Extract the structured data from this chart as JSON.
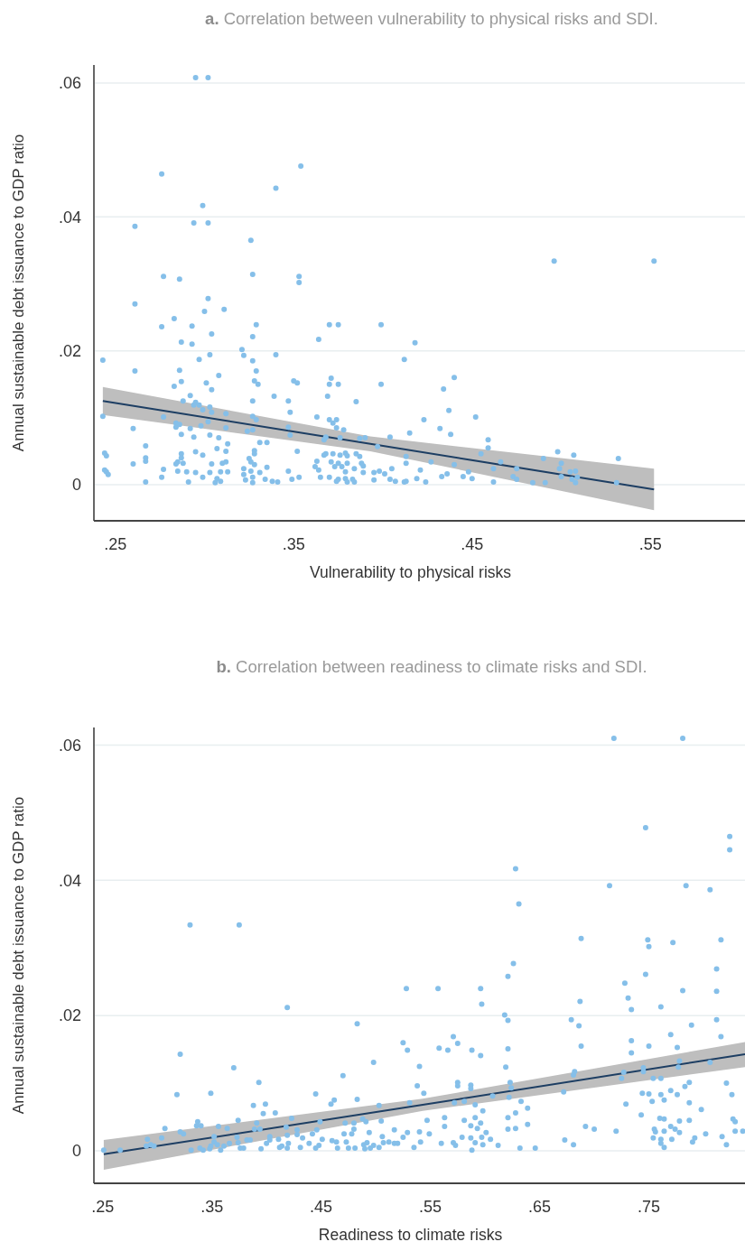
{
  "chart_data": [
    {
      "type": "scatter",
      "title": "a. Correlation between vulnerability to physical risks and SDI.",
      "xlabel": "Vulnerability to physical risks",
      "ylabel": "Annual sustainable debt issuance to GDP ratio",
      "xlim": [
        0.238,
        0.603
      ],
      "ylim": [
        -0.0054,
        0.0627
      ],
      "xticks": [
        {
          "value": 0.25,
          "label": ".25"
        },
        {
          "value": 0.35,
          "label": ".35"
        },
        {
          "value": 0.45,
          "label": ".45"
        },
        {
          "value": 0.55,
          "label": ".55"
        }
      ],
      "yticks": [
        {
          "value": 0,
          "label": "0"
        },
        {
          "value": 0.02,
          "label": ".02"
        },
        {
          "value": 0.04,
          "label": ".04"
        },
        {
          "value": 0.06,
          "label": ".06"
        }
      ],
      "grid": "y",
      "series": [
        {
          "type": "line",
          "color": "#1d3e63",
          "x": [
            0.243,
            0.393,
            0.552
          ],
          "values": [
            0.0125,
            0.0061,
            -0.0007
          ],
          "lower": [
            0.0104,
            0.005,
            -0.0038
          ],
          "upper": [
            0.0146,
            0.0072,
            0.0024
          ]
        },
        {
          "marker": "circle",
          "color": "#85bfe9",
          "x": [
            0.295,
            0.302,
            0.276,
            0.354,
            0.34,
            0.299,
            0.261,
            0.294,
            0.302,
            0.326,
            0.277,
            0.286,
            0.327,
            0.353,
            0.353,
            0.418,
            0.412,
            0.44,
            0.434,
            0.437,
            0.423,
            0.452,
            0.415,
            0.432,
            0.438,
            0.459,
            0.459,
            0.455,
            0.49,
            0.498,
            0.507,
            0.532,
            0.466,
            0.5,
            0.413,
            0.427,
            0.44,
            0.462,
            0.475,
            0.499,
            0.505,
            0.508,
            0.448,
            0.421,
            0.445,
            0.433,
            0.436,
            0.45,
            0.473,
            0.475,
            0.5,
            0.506,
            0.509,
            0.419,
            0.424,
            0.412,
            0.462,
            0.484,
            0.491,
            0.508,
            0.531,
            0.496,
            0.552,
            0.261,
            0.302,
            0.3,
            0.311,
            0.283,
            0.276,
            0.293,
            0.329,
            0.37,
            0.375,
            0.399,
            0.304,
            0.287,
            0.293,
            0.327,
            0.364,
            0.321,
            0.243,
            0.261,
            0.297,
            0.303,
            0.322,
            0.34,
            0.327,
            0.329,
            0.286,
            0.308,
            0.283,
            0.287,
            0.301,
            0.304,
            0.328,
            0.33,
            0.35,
            0.352,
            0.371,
            0.37,
            0.375,
            0.399,
            0.292,
            0.288,
            0.295,
            0.294,
            0.297,
            0.299,
            0.303,
            0.304,
            0.339,
            0.347,
            0.327,
            0.369,
            0.385,
            0.243,
            0.277,
            0.312,
            0.327,
            0.329,
            0.348,
            0.363,
            0.37,
            0.374,
            0.372,
            0.374,
            0.378,
            0.26,
            0.284,
            0.284,
            0.286,
            0.292,
            0.298,
            0.302,
            0.312,
            0.327,
            0.324,
            0.347,
            0.348,
            0.287,
            0.294,
            0.303,
            0.308,
            0.368,
            0.367,
            0.376,
            0.387,
            0.39,
            0.404,
            0.397,
            0.331,
            0.335,
            0.313,
            0.267,
            0.244,
            0.245,
            0.295,
            0.299,
            0.307,
            0.312,
            0.328,
            0.328,
            0.352,
            0.287,
            0.287,
            0.267,
            0.267,
            0.26,
            0.284,
            0.285,
            0.288,
            0.304,
            0.31,
            0.312,
            0.325,
            0.326,
            0.328,
            0.335,
            0.367,
            0.368,
            0.372,
            0.376,
            0.379,
            0.38,
            0.385,
            0.387,
            0.363,
            0.371,
            0.375,
            0.38,
            0.388,
            0.389,
            0.244,
            0.245,
            0.246,
            0.277,
            0.285,
            0.29,
            0.295,
            0.303,
            0.309,
            0.313,
            0.322,
            0.326,
            0.331,
            0.347,
            0.362,
            0.364,
            0.373,
            0.377,
            0.379,
            0.384,
            0.389,
            0.395,
            0.398,
            0.401,
            0.405,
            0.413,
            0.276,
            0.299,
            0.307,
            0.322,
            0.327,
            0.334,
            0.349,
            0.353,
            0.365,
            0.37,
            0.375,
            0.379,
            0.383,
            0.404,
            0.267,
            0.291,
            0.306,
            0.309,
            0.323,
            0.327,
            0.338,
            0.341,
            0.374,
            0.38,
            0.384,
            0.395,
            0.407,
            0.413
          ],
          "values": [
            0.0608,
            0.0608,
            0.0464,
            0.0476,
            0.0443,
            0.0417,
            0.0386,
            0.0391,
            0.0391,
            0.0365,
            0.0311,
            0.0307,
            0.0314,
            0.0311,
            0.0302,
            0.0212,
            0.0187,
            0.016,
            0.0143,
            0.0111,
            0.0097,
            0.0101,
            0.0077,
            0.0084,
            0.0075,
            0.0067,
            0.0055,
            0.0046,
            0.0039,
            0.0049,
            0.0044,
            0.0039,
            0.0034,
            0.0032,
            0.0042,
            0.0034,
            0.003,
            0.0024,
            0.0024,
            0.0024,
            0.0019,
            0.002,
            0.0019,
            0.0022,
            0.0012,
            0.0012,
            0.0016,
            0.0009,
            0.0012,
            0.0008,
            0.0012,
            0.0008,
            0.0011,
            0.0009,
            0.0004,
            0.0004,
            0.0004,
            0.0003,
            0.0003,
            0.0003,
            0.0003,
            0.0334,
            0.0334,
            0.027,
            0.0278,
            0.0259,
            0.0262,
            0.0248,
            0.0236,
            0.0237,
            0.0239,
            0.0239,
            0.0239,
            0.0239,
            0.0225,
            0.0213,
            0.021,
            0.0221,
            0.0217,
            0.0202,
            0.0186,
            0.017,
            0.0187,
            0.0194,
            0.0193,
            0.0194,
            0.0185,
            0.017,
            0.0171,
            0.0163,
            0.0147,
            0.0154,
            0.0152,
            0.0142,
            0.0155,
            0.015,
            0.0155,
            0.0152,
            0.0159,
            0.015,
            0.015,
            0.015,
            0.0133,
            0.0125,
            0.0123,
            0.0119,
            0.0119,
            0.0112,
            0.0116,
            0.0108,
            0.0132,
            0.0125,
            0.0125,
            0.0132,
            0.0124,
            0.0102,
            0.0101,
            0.0106,
            0.0102,
            0.0097,
            0.0108,
            0.0101,
            0.0097,
            0.0097,
            0.0092,
            0.0085,
            0.0082,
            0.0084,
            0.0092,
            0.0086,
            0.009,
            0.0084,
            0.0088,
            0.0094,
            0.0085,
            0.0082,
            0.008,
            0.0086,
            0.0074,
            0.0075,
            0.0071,
            0.0074,
            0.007,
            0.0071,
            0.0067,
            0.007,
            0.0069,
            0.007,
            0.0071,
            0.0057,
            0.0063,
            0.0063,
            0.0061,
            0.0058,
            0.0047,
            0.0043,
            0.0049,
            0.0044,
            0.0054,
            0.005,
            0.0051,
            0.0046,
            0.005,
            0.0046,
            0.004,
            0.004,
            0.0035,
            0.0031,
            0.0031,
            0.0034,
            0.0032,
            0.0031,
            0.0032,
            0.0034,
            0.0039,
            0.0034,
            0.003,
            0.0026,
            0.0044,
            0.0046,
            0.0046,
            0.0044,
            0.0047,
            0.0043,
            0.0046,
            0.0042,
            0.0035,
            0.0034,
            0.0032,
            0.0032,
            0.0032,
            0.0028,
            0.0022,
            0.0019,
            0.0015,
            0.0023,
            0.002,
            0.0019,
            0.0018,
            0.0018,
            0.0019,
            0.0019,
            0.0024,
            0.002,
            0.0018,
            0.002,
            0.0027,
            0.0022,
            0.0027,
            0.0027,
            0.0019,
            0.0024,
            0.0018,
            0.0018,
            0.002,
            0.0016,
            0.0024,
            0.0032,
            0.0011,
            0.0011,
            0.0009,
            0.0015,
            0.0011,
            0.0008,
            0.0008,
            0.0011,
            0.0011,
            0.0011,
            0.0008,
            0.0009,
            0.0008,
            0.0008,
            0.0004,
            0.0004,
            0.0003,
            0.0005,
            0.0007,
            0.0003,
            0.0005,
            0.0004,
            0.0005,
            0.0004,
            0.0004,
            0.0007,
            0.0005,
            0.0005
          ]
        }
      ]
    },
    {
      "type": "scatter",
      "title": "b. Correlation between readiness to climate risks and SDI.",
      "xlabel": "Readiness to climate risks",
      "ylabel": "Annual sustainable debt issuance to GDP ratio",
      "xlim": [
        0.242,
        0.838
      ],
      "ylim": [
        -0.0048,
        0.0626
      ],
      "xticks": [
        {
          "value": 0.25,
          "label": ".25"
        },
        {
          "value": 0.35,
          "label": ".35"
        },
        {
          "value": 0.45,
          "label": ".45"
        },
        {
          "value": 0.55,
          "label": ".55"
        },
        {
          "value": 0.65,
          "label": ".65"
        },
        {
          "value": 0.75,
          "label": ".75"
        }
      ],
      "yticks": [
        {
          "value": 0,
          "label": "0"
        },
        {
          "value": 0.02,
          "label": ".02"
        },
        {
          "value": 0.04,
          "label": ".04"
        },
        {
          "value": 0.06,
          "label": ".06"
        }
      ],
      "grid": "y",
      "series": [
        {
          "type": "line",
          "color": "#1d3e63",
          "x": [
            0.251,
            0.543,
            0.838
          ],
          "values": [
            -0.0005,
            0.0068,
            0.0143
          ],
          "lower": [
            -0.0028,
            0.0059,
            0.0124
          ],
          "upper": [
            0.0016,
            0.0077,
            0.0161
          ]
        },
        {
          "marker": "circle",
          "color": "#85bfe9",
          "x": [
            0.33,
            0.375,
            0.528,
            0.419,
            0.483,
            0.525,
            0.529,
            0.321,
            0.37,
            0.54,
            0.498,
            0.393,
            0.47,
            0.538,
            0.318,
            0.349,
            0.445,
            0.459,
            0.462,
            0.483,
            0.388,
            0.399,
            0.397,
            0.408,
            0.503,
            0.531,
            0.307,
            0.321,
            0.324,
            0.337,
            0.336,
            0.34,
            0.356,
            0.364,
            0.374,
            0.389,
            0.394,
            0.391,
            0.423,
            0.418,
            0.428,
            0.449,
            0.472,
            0.48,
            0.488,
            0.491,
            0.505,
            0.291,
            0.304,
            0.294,
            0.29,
            0.297,
            0.251,
            0.266,
            0.331,
            0.339,
            0.342,
            0.348,
            0.349,
            0.352,
            0.352,
            0.355,
            0.358,
            0.361,
            0.366,
            0.373,
            0.374,
            0.376,
            0.379,
            0.382,
            0.385,
            0.395,
            0.4,
            0.403,
            0.403,
            0.411,
            0.412,
            0.414,
            0.419,
            0.419,
            0.42,
            0.428,
            0.431,
            0.433,
            0.439,
            0.442,
            0.445,
            0.446,
            0.448,
            0.451,
            0.46,
            0.464,
            0.465,
            0.471,
            0.473,
            0.475,
            0.478,
            0.48,
            0.481,
            0.489,
            0.49,
            0.492,
            0.494,
            0.495,
            0.498,
            0.503,
            0.506,
            0.507,
            0.512,
            0.517,
            0.517,
            0.52,
            0.525,
            0.529,
            0.535,
            0.54,
            0.541,
            0.718,
            0.781,
            0.747,
            0.824,
            0.824,
            0.628,
            0.714,
            0.784,
            0.806,
            0.631,
            0.688,
            0.749,
            0.75,
            0.772,
            0.816,
            0.812,
            0.812,
            0.812,
            0.816,
            0.557,
            0.596,
            0.597,
            0.621,
            0.626,
            0.618,
            0.621,
            0.621,
            0.619,
            0.728,
            0.731,
            0.734,
            0.747,
            0.761,
            0.687,
            0.679,
            0.686,
            0.688,
            0.734,
            0.734,
            0.75,
            0.77,
            0.776,
            0.781,
            0.789,
            0.571,
            0.575,
            0.558,
            0.566,
            0.588,
            0.596,
            0.682,
            0.681,
            0.727,
            0.725,
            0.745,
            0.745,
            0.778,
            0.777,
            0.806,
            0.754,
            0.761,
            0.787,
            0.821,
            0.544,
            0.575,
            0.575,
            0.587,
            0.587,
            0.623,
            0.624,
            0.607,
            0.622,
            0.572,
            0.581,
            0.591,
            0.633,
            0.672,
            0.729,
            0.744,
            0.75,
            0.753,
            0.77,
            0.776,
            0.783,
            0.761,
            0.764,
            0.787,
            0.798,
            0.826,
            0.598,
            0.628,
            0.639,
            0.547,
            0.563,
            0.563,
            0.581,
            0.591,
            0.587,
            0.593,
            0.596,
            0.621,
            0.621,
            0.628,
            0.639,
            0.743,
            0.76,
            0.764,
            0.77,
            0.778,
            0.787,
            0.827,
            0.829,
            0.692,
            0.7,
            0.72,
            0.755,
            0.756,
            0.764,
            0.774,
            0.778,
            0.802,
            0.829,
            0.549,
            0.56,
            0.571,
            0.573,
            0.579,
            0.587,
            0.591,
            0.588,
            0.597,
            0.601,
            0.598,
            0.605,
            0.612,
            0.632,
            0.646,
            0.673,
            0.681,
            0.754,
            0.761,
            0.761,
            0.764,
            0.771,
            0.792,
            0.79,
            0.817,
            0.821,
            0.836
          ],
          "values": [
            0.0334,
            0.0334,
            0.024,
            0.0212,
            0.0188,
            0.016,
            0.0149,
            0.0143,
            0.0123,
            0.0125,
            0.0131,
            0.0101,
            0.0111,
            0.0096,
            0.0083,
            0.0085,
            0.0084,
            0.0069,
            0.0075,
            0.0076,
            0.0067,
            0.0069,
            0.0055,
            0.0056,
            0.0067,
            0.0071,
            0.0033,
            0.0028,
            0.0025,
            0.0043,
            0.0037,
            0.0037,
            0.0036,
            0.0033,
            0.0045,
            0.0032,
            0.0032,
            0.0041,
            0.0048,
            0.0035,
            0.0031,
            0.0043,
            0.0041,
            0.0041,
            0.0047,
            0.0043,
            0.0044,
            0.0017,
            0.0019,
            0.0009,
            0.0007,
            0.0007,
            0.0001,
            0.0001,
            0.0001,
            0.0004,
            0.0001,
            0.0003,
            0.0007,
            0.0021,
            0.0013,
            0.0009,
            0.0001,
            0.0007,
            0.0011,
            0.002,
            0.0012,
            0.0004,
            0.0004,
            0.0016,
            0.0016,
            0.0003,
            0.0011,
            0.0021,
            0.0016,
            0.0017,
            0.0005,
            0.0007,
            0.0004,
            0.0023,
            0.0011,
            0.0024,
            0.0005,
            0.0019,
            0.0011,
            0.0025,
            0.0004,
            0.0031,
            0.0008,
            0.0017,
            0.0015,
            0.0013,
            0.0004,
            0.0025,
            0.0013,
            0.0004,
            0.0025,
            0.0032,
            0.0004,
            0.0009,
            0.0003,
            0.0012,
            0.0027,
            0.0004,
            0.0008,
            0.0005,
            0.0021,
            0.0012,
            0.0013,
            0.0031,
            0.0011,
            0.0011,
            0.002,
            0.0027,
            0.0005,
            0.0028,
            0.0013,
            0.061,
            0.061,
            0.0478,
            0.0465,
            0.0445,
            0.0417,
            0.0392,
            0.0392,
            0.0386,
            0.0365,
            0.0314,
            0.0312,
            0.0302,
            0.0308,
            0.0312,
            0.0269,
            0.0236,
            0.0194,
            0.0169,
            0.024,
            0.024,
            0.0217,
            0.0258,
            0.0277,
            0.0201,
            0.0193,
            0.0151,
            0.0124,
            0.0248,
            0.0226,
            0.0209,
            0.0261,
            0.0213,
            0.0221,
            0.0194,
            0.0185,
            0.0155,
            0.0163,
            0.0145,
            0.0155,
            0.0172,
            0.0153,
            0.0237,
            0.0186,
            0.0169,
            0.0159,
            0.0152,
            0.0149,
            0.0149,
            0.0141,
            0.0117,
            0.0112,
            0.0116,
            0.0107,
            0.0123,
            0.0117,
            0.0133,
            0.0124,
            0.0131,
            0.0107,
            0.0107,
            0.0101,
            0.01,
            0.0085,
            0.0101,
            0.0096,
            0.0097,
            0.0092,
            0.0101,
            0.0093,
            0.0081,
            0.0079,
            0.0071,
            0.0073,
            0.0068,
            0.0073,
            0.0087,
            0.0069,
            0.0085,
            0.0084,
            0.0073,
            0.0089,
            0.0083,
            0.0095,
            0.0083,
            0.0075,
            0.0071,
            0.0061,
            0.0083,
            0.0059,
            0.0056,
            0.0063,
            0.0045,
            0.0049,
            0.0036,
            0.0045,
            0.0049,
            0.0037,
            0.0033,
            0.0041,
            0.0049,
            0.0032,
            0.0033,
            0.0039,
            0.0053,
            0.0048,
            0.0047,
            0.0036,
            0.0044,
            0.0045,
            0.0047,
            0.0043,
            0.0036,
            0.0032,
            0.0029,
            0.0032,
            0.0028,
            0.0029,
            0.0032,
            0.0027,
            0.0025,
            0.0029,
            0.0025,
            0.0011,
            0.0012,
            0.0008,
            0.002,
            0.0019,
            0.0012,
            0.0001,
            0.002,
            0.0027,
            0.0009,
            0.0017,
            0.0008,
            0.0004,
            0.0004,
            0.0016,
            0.0009,
            0.0019,
            0.0017,
            0.0011,
            0.0005,
            0.0017,
            0.0019,
            0.0013,
            0.0021,
            0.0009,
            0.0029
          ]
        }
      ]
    }
  ]
}
